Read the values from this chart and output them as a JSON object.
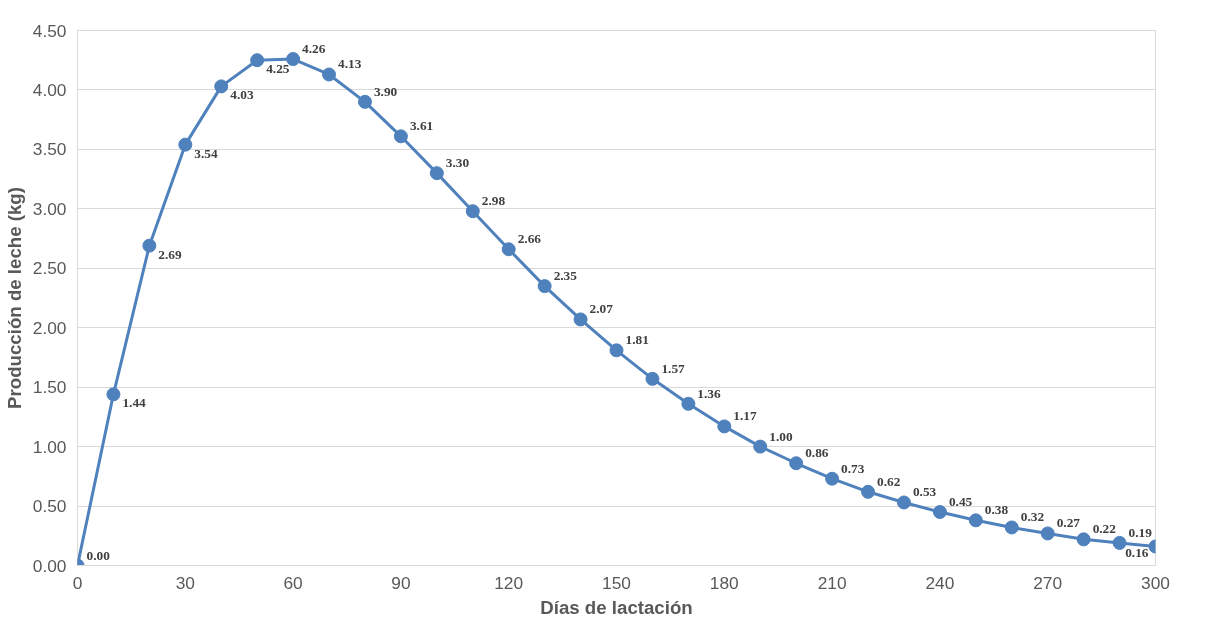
{
  "chart_data": {
    "type": "line",
    "xlabel": "Días de lactación",
    "ylabel": "Producción de leche (kg)",
    "x": [
      0,
      10,
      20,
      30,
      40,
      50,
      60,
      70,
      80,
      90,
      100,
      110,
      120,
      130,
      140,
      150,
      160,
      170,
      180,
      190,
      200,
      210,
      220,
      230,
      240,
      250,
      260,
      270,
      280,
      290,
      300
    ],
    "series": [
      {
        "color": "#4f81bd",
        "values": [
          0,
          1.44,
          2.69,
          3.54,
          4.03,
          4.25,
          4.26,
          4.13,
          3.9,
          3.61,
          3.3,
          2.98,
          2.66,
          2.35,
          2.07,
          1.81,
          1.57,
          1.36,
          1.17,
          1.0,
          0.86,
          0.73,
          0.62,
          0.53,
          0.45,
          0.38,
          0.32,
          0.27,
          0.22,
          0.19,
          0.16
        ],
        "value_labels": [
          "0.00",
          "1.44",
          "2.69",
          "3.54",
          "4.03",
          "4.25",
          "4.26",
          "4.13",
          "3.90",
          "3.61",
          "3.30",
          "2.98",
          "2.66",
          "2.35",
          "2.07",
          "1.81",
          "1.57",
          "1.36",
          "1.17",
          "1.00",
          "0.86",
          "0.73",
          "0.62",
          "0.53",
          "0.45",
          "0.38",
          "0.32",
          "0.27",
          "0.22",
          "0.19",
          "0.16"
        ]
      }
    ],
    "xlim": [
      0,
      300
    ],
    "xticks": [
      0,
      30,
      60,
      90,
      120,
      150,
      180,
      210,
      240,
      270,
      300
    ],
    "ylim": [
      0,
      4.5
    ],
    "yticks": [
      {
        "value": 0,
        "label": "0.00"
      },
      {
        "value": 0.5,
        "label": "0.50"
      },
      {
        "value": 1,
        "label": "1.00"
      },
      {
        "value": 1.5,
        "label": "1.50"
      },
      {
        "value": 2,
        "label": "2.00"
      },
      {
        "value": 2.5,
        "label": "2.50"
      },
      {
        "value": 3,
        "label": "3.00"
      },
      {
        "value": 3.5,
        "label": "3.50"
      },
      {
        "value": 4,
        "label": "4.00"
      },
      {
        "value": 4.5,
        "label": "4.50"
      }
    ],
    "grid": "y",
    "marker": "circle",
    "line_style": "solid"
  }
}
